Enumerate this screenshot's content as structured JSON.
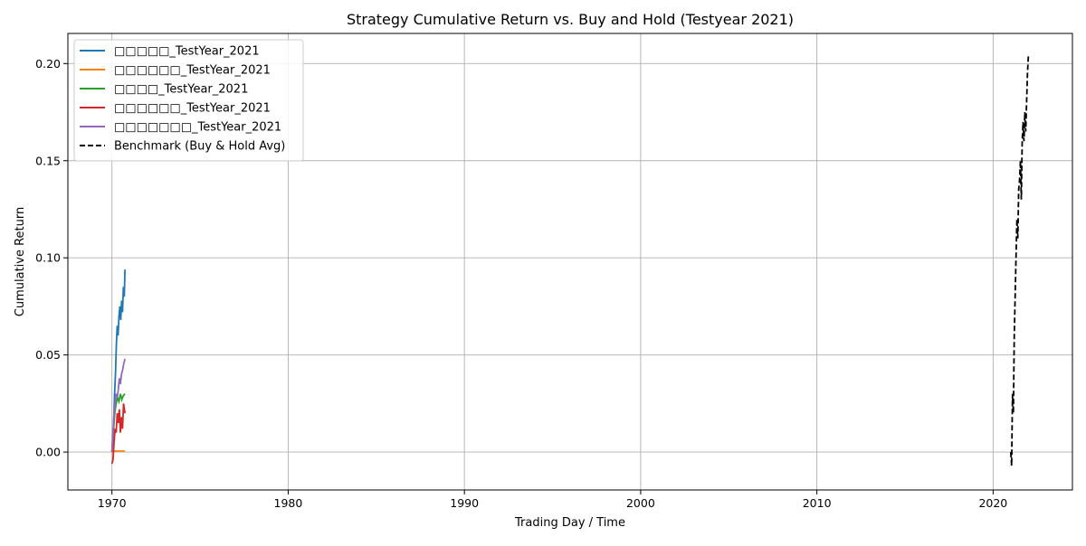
{
  "chart_data": {
    "type": "line",
    "title": "Strategy Cumulative Return vs. Buy and Hold (Testyear 2021)",
    "xlabel": "Trading Day / Time",
    "ylabel": "Cumulative Return",
    "xlim": [
      1967.5,
      2024.5
    ],
    "ylim": [
      -0.0195,
      0.2155
    ],
    "x_ticks": [
      1970,
      1980,
      1990,
      2000,
      2010,
      2020
    ],
    "x_tick_labels": [
      "1970",
      "1980",
      "1990",
      "2000",
      "2010",
      "2020"
    ],
    "y_ticks": [
      0.0,
      0.05,
      0.1,
      0.15,
      0.2
    ],
    "y_tick_labels": [
      "0.00",
      "0.05",
      "0.10",
      "0.15",
      "0.20"
    ],
    "grid": true,
    "legend_position": "top-left",
    "series": [
      {
        "name": "□□□□□_TestYear_2021",
        "color": "#1f77b4",
        "dash": "solid",
        "x": [
          1970.0,
          1970.05,
          1970.1,
          1970.15,
          1970.2,
          1970.25,
          1970.3,
          1970.35,
          1970.4,
          1970.45,
          1970.5,
          1970.55,
          1970.6,
          1970.65,
          1970.7,
          1970.74
        ],
        "y": [
          0.0,
          0.008,
          0.015,
          0.03,
          0.04,
          0.055,
          0.065,
          0.06,
          0.07,
          0.075,
          0.068,
          0.078,
          0.072,
          0.085,
          0.08,
          0.094
        ]
      },
      {
        "name": "□□□□□□_TestYear_2021",
        "color": "#ff7f0e",
        "dash": "solid",
        "x": [
          1970.0,
          1970.1,
          1970.2,
          1970.3,
          1970.4,
          1970.5,
          1970.6,
          1970.74
        ],
        "y": [
          0.0,
          0.0005,
          0.0005,
          0.0005,
          0.0005,
          0.0005,
          0.0005,
          0.0005
        ]
      },
      {
        "name": "□□□□_TestYear_2021",
        "color": "#2ca02c",
        "dash": "solid",
        "x": [
          1970.0,
          1970.08,
          1970.16,
          1970.24,
          1970.32,
          1970.4,
          1970.48,
          1970.56,
          1970.64,
          1970.74
        ],
        "y": [
          0.0,
          0.01,
          0.02,
          0.025,
          0.028,
          0.026,
          0.03,
          0.027,
          0.029,
          0.03
        ]
      },
      {
        "name": "□□□□□□_TestYear_2021",
        "color": "#d62728",
        "dash": "solid",
        "x": [
          1970.0,
          1970.06,
          1970.12,
          1970.18,
          1970.24,
          1970.3,
          1970.36,
          1970.42,
          1970.48,
          1970.54,
          1970.6,
          1970.66,
          1970.74
        ],
        "y": [
          -0.006,
          -0.004,
          0.005,
          0.012,
          0.01,
          0.02,
          0.015,
          0.022,
          0.01,
          0.018,
          0.012,
          0.025,
          0.02
        ]
      },
      {
        "name": "□□□□□□□_TestYear_2021",
        "color": "#9467bd",
        "dash": "solid",
        "x": [
          1970.0,
          1970.06,
          1970.12,
          1970.18,
          1970.24,
          1970.3,
          1970.36,
          1970.42,
          1970.48,
          1970.54,
          1970.6,
          1970.66,
          1970.74
        ],
        "y": [
          0.0,
          0.01,
          0.02,
          0.025,
          0.03,
          0.028,
          0.032,
          0.038,
          0.035,
          0.04,
          0.042,
          0.045,
          0.048
        ]
      },
      {
        "name": "Benchmark (Buy & Hold Avg)",
        "color": "#000000",
        "dash": "dashed",
        "x": [
          2021.0,
          2021.05,
          2021.1,
          2021.15,
          2021.2,
          2021.25,
          2021.3,
          2021.35,
          2021.4,
          2021.45,
          2021.5,
          2021.55,
          2021.6,
          2021.65,
          2021.7,
          2021.75,
          2021.8,
          2021.85,
          2021.9,
          2021.95,
          2022.0
        ],
        "y": [
          0.0,
          -0.007,
          0.03,
          0.02,
          0.06,
          0.08,
          0.1,
          0.12,
          0.11,
          0.135,
          0.14,
          0.15,
          0.13,
          0.16,
          0.17,
          0.16,
          0.175,
          0.165,
          0.18,
          0.195,
          0.204
        ]
      }
    ]
  }
}
